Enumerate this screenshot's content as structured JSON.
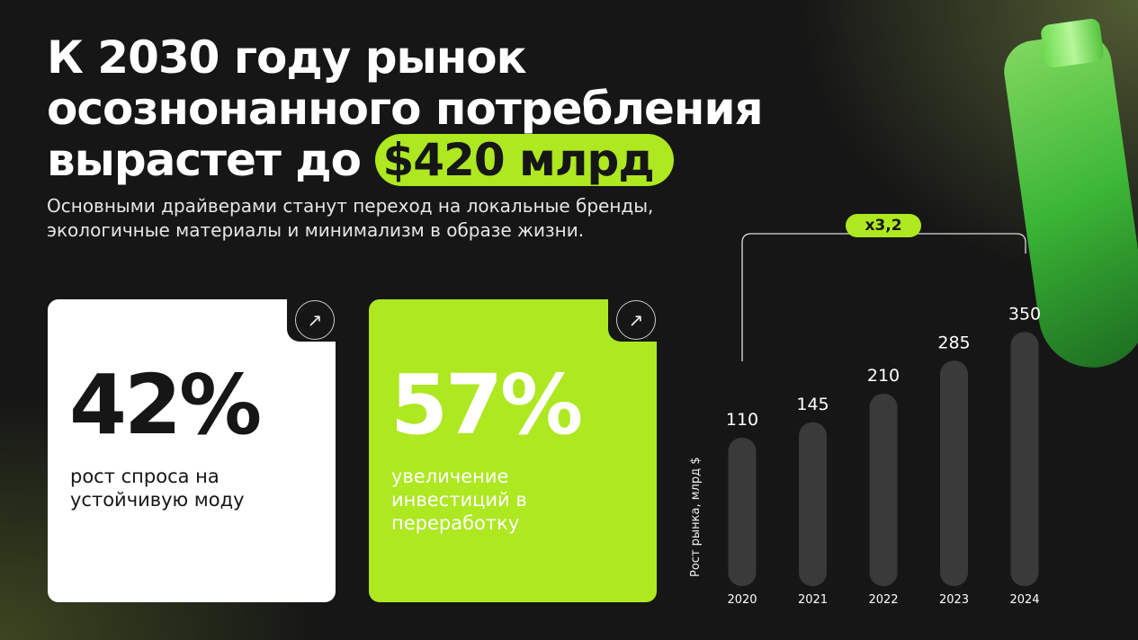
{
  "title": {
    "line1": "К 2030 году рынок",
    "line2": "осознонанного потребления",
    "line3_prefix": "вырастет до",
    "highlight": "$420 млрд"
  },
  "subtitle": "Основными драйверами станут переход на локальные бренды, экологичные материалы и минимализм в образе жизни.",
  "cards": [
    {
      "value": "42%",
      "description": "рост спроса на устойчивую моду",
      "icon": "arrow-up-right-icon"
    },
    {
      "value": "57%",
      "description": "увеличение инвестиций в переработку",
      "icon": "arrow-up-right-icon"
    }
  ],
  "colors": {
    "accent": "#ade821",
    "background": "#161616",
    "bar": "#3a3a3a"
  },
  "chart_data": {
    "type": "bar",
    "categories": [
      "2020",
      "2021",
      "2022",
      "2023",
      "2024"
    ],
    "values": [
      110,
      145,
      210,
      285,
      350
    ],
    "ylabel": "Рост рынка, млрд $",
    "annotation": "x3,2",
    "grid": false
  }
}
